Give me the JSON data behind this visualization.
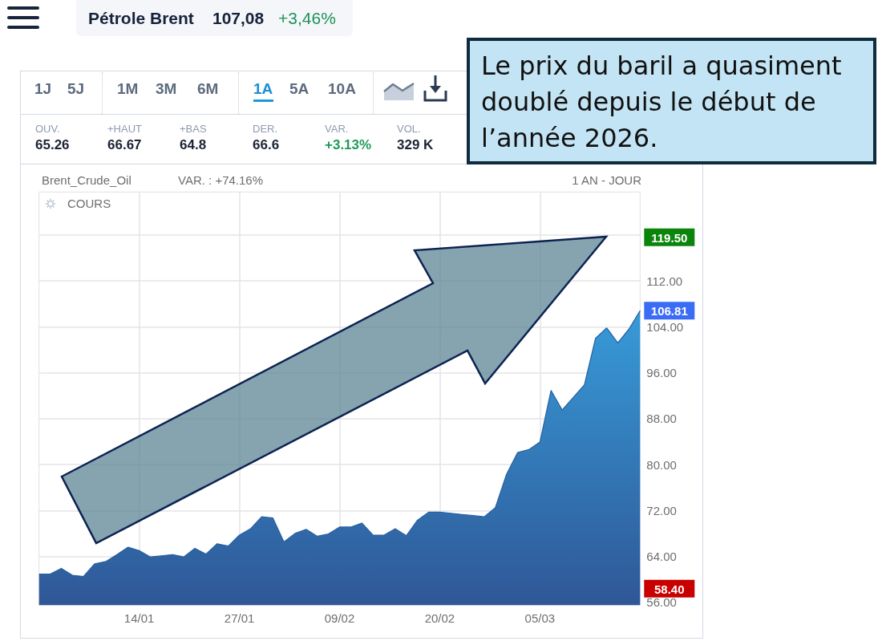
{
  "chart_data": {
    "type": "area",
    "title": "Pétrole Brent",
    "subtitle": "Brent_Crude_Oil",
    "annotations": [
      "107,08",
      "+3,46%",
      "1J",
      "5J",
      "1M",
      "3M",
      "6M",
      "1A",
      "5A",
      "10A",
      "OUV.",
      "65.26",
      "+HAUT",
      "66.67",
      "+BAS",
      "64.8",
      "DER.",
      "66.6",
      "VAR.",
      "+3.13%",
      "VOL.",
      "329 K",
      "VAR. : +74.16%",
      "1 AN - JOUR",
      "COURS",
      "Le prix du baril a quasiment doublé depuis le début de l’année 2026.",
      "119.50",
      "58.40"
    ],
    "categories": [
      null,
      null,
      null,
      null,
      null,
      null,
      null,
      null,
      null,
      "14/01",
      null,
      null,
      null,
      null,
      null,
      null,
      null,
      null,
      "27/01",
      null,
      null,
      null,
      null,
      null,
      null,
      null,
      null,
      "09/02",
      null,
      null,
      null,
      null,
      null,
      null,
      null,
      null,
      "20/02",
      null,
      null,
      null,
      null,
      null,
      null,
      null,
      null,
      "05/03",
      null,
      null,
      null,
      null,
      null,
      null,
      null,
      null,
      null
    ],
    "values": [
      60.9,
      60.9,
      61.9,
      60.7,
      60.5,
      62.7,
      63.1,
      64.3,
      65.6,
      65.0,
      63.9,
      64.1,
      64.3,
      63.9,
      65.4,
      64.4,
      66.2,
      65.8,
      67.7,
      68.8,
      70.9,
      70.7,
      66.5,
      68.0,
      68.7,
      67.5,
      67.9,
      69.1,
      69.1,
      69.8,
      67.7,
      67.7,
      68.8,
      67.6,
      70.3,
      71.7,
      71.7,
      71.5,
      71.3,
      71.1,
      70.9,
      72.5,
      78.3,
      82.1,
      82.6,
      83.9,
      92.9,
      89.5,
      91.7,
      93.9,
      102.0,
      103.8,
      101.2,
      103.6,
      106.81
    ],
    "value_labels": [
      null,
      null,
      null,
      null,
      null,
      null,
      null,
      null,
      null,
      null,
      null,
      null,
      null,
      null,
      null,
      null,
      null,
      null,
      null,
      null,
      null,
      null,
      null,
      null,
      null,
      null,
      null,
      null,
      null,
      null,
      null,
      null,
      null,
      null,
      null,
      null,
      null,
      null,
      null,
      null,
      null,
      null,
      null,
      null,
      null,
      null,
      null,
      null,
      null,
      null,
      null,
      null,
      null,
      null,
      "106.81"
    ],
    "color": "#3178b8",
    "ylim": [
      55.5,
      127.5
    ],
    "yticks": [
      {
        "value": 56,
        "label": "56.00"
      },
      {
        "value": 64,
        "label": "64.00"
      },
      {
        "value": 72,
        "label": "72.00"
      },
      {
        "value": 80,
        "label": "80.00"
      },
      {
        "value": 88,
        "label": "88.00"
      },
      {
        "value": 96,
        "label": "96.00"
      },
      {
        "value": 104,
        "label": "104.00"
      },
      {
        "value": 112,
        "label": "112.00"
      },
      {
        "value": 120,
        "label": null
      }
    ],
    "grid": true,
    "marker": "none"
  }
}
